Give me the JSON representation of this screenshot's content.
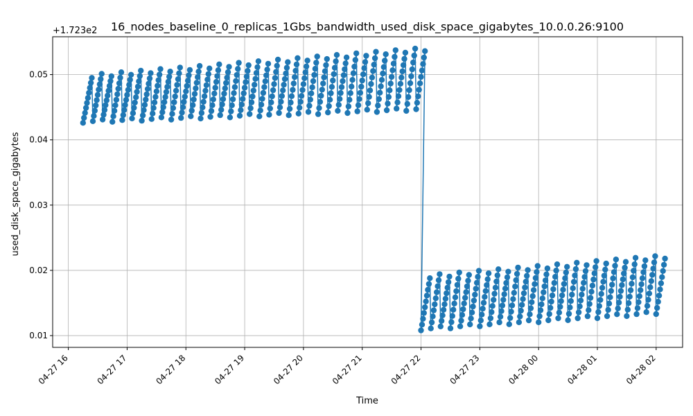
{
  "chart_data": {
    "type": "line",
    "title": "16_nodes_baseline_0_replicas_1Gbs_bandwidth_used_disk_space_gigabytes_10.0.0.26:9100",
    "xlabel": "Time",
    "ylabel": "used_disk_space_gigabytes",
    "offset_text": "+1.723e2",
    "y_offset": 172.3,
    "x_ticks": [
      "04-27 16",
      "04-27 17",
      "04-27 18",
      "04-27 19",
      "04-27 20",
      "04-27 21",
      "04-27 22",
      "04-27 23",
      "04-28 00",
      "04-28 01",
      "04-28 02"
    ],
    "y_ticks": [
      "0.01",
      "0.02",
      "0.03",
      "0.04",
      "0.05"
    ],
    "xlim": [
      "2024-04-27 15:44",
      "2024-04-28 02:27"
    ],
    "ylim": [
      0.0082,
      0.0558
    ],
    "grid": true,
    "marker": "circle",
    "series": [
      {
        "color": "#1f77b4",
        "segments": [
          {
            "start": "2024-04-27 16:15",
            "end": "2024-04-27 22:00",
            "cycle_minutes": 10,
            "low_start": 0.0428,
            "low_end": 0.0447,
            "high_start": 0.0497,
            "high_end": 0.0538
          },
          {
            "start": "2024-04-27 22:00",
            "end": "2024-04-28 02:12",
            "cycle_minutes": 10,
            "low_start": 0.011,
            "low_end": 0.0135,
            "high_start": 0.019,
            "high_end": 0.022
          }
        ]
      }
    ]
  }
}
